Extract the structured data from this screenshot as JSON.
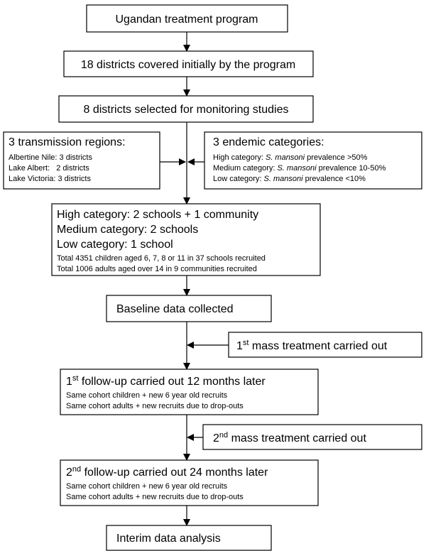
{
  "nodes": {
    "start": "Ugandan treatment program",
    "districts": "18 districts covered initially by the program",
    "selected": "8 districts selected for monitoring studies",
    "regions": {
      "title": "3 transmission regions:",
      "details": [
        "Albertine Nile: 3 districts",
        "Lake Albert:   2 districts",
        "Lake Victoria: 3 districts"
      ]
    },
    "endemic": {
      "title": "3 endemic categories:",
      "details": [
        [
          "High category: ",
          "S. mansoni",
          " prevalence >50%"
        ],
        [
          "Medium category: ",
          "S. mansoni",
          " prevalence 10-50%"
        ],
        [
          "Low category: ",
          "S. mansoni",
          " prevalence <10%"
        ]
      ]
    },
    "recruitment": {
      "lines": [
        "High category: 2 schools + 1 community",
        "Medium category: 2 schools",
        "Low category: 1 school"
      ],
      "details": [
        "Total 4351 children aged 6, 7, 8 or 11 in 37 schools recruited",
        "Total 1006 adults aged over 14 in 9 communities recruited"
      ]
    },
    "baseline": "Baseline data collected",
    "treatment1": [
      "1",
      "st",
      " mass treatment carried out"
    ],
    "followup1": {
      "title": [
        "1",
        "st",
        " follow-up carried out 12 months later"
      ],
      "details": [
        "Same cohort children + new 6 year old recruits",
        "Same cohort adults + new recruits due to drop-outs"
      ]
    },
    "treatment2": [
      "2",
      "nd",
      " mass treatment carried out"
    ],
    "followup2": {
      "title": [
        "2",
        "nd",
        " follow-up carried out 24 months later"
      ],
      "details": [
        "Same cohort children + new 6 year old recruits",
        "Same cohort adults + new recruits due to drop-outs"
      ]
    },
    "analysis": "Interim data analysis"
  }
}
